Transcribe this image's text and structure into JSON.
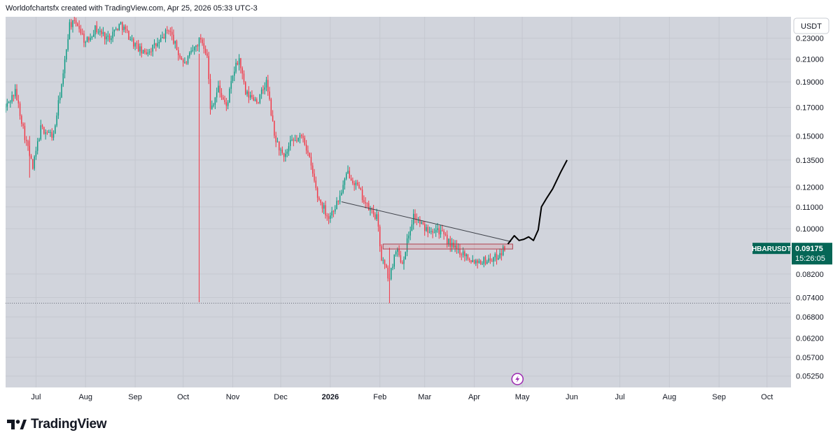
{
  "header": {
    "attribution": "Worldofchartsfx created with TradingView.com, Apr 25, 2026 05:33 UTC-3"
  },
  "footer": {
    "brand": "TradingView"
  },
  "colors": {
    "up": "#089981",
    "down": "#f23645",
    "plot_bg": "#d1d4dc",
    "grid": "#c5c8d0",
    "badge": "#056656"
  },
  "chart_data": {
    "type": "candlestick",
    "symbol": "HBARUSDT",
    "interval": "1D",
    "currency": "USDT",
    "scale": "log",
    "ylim": [
      0.0515,
      0.245
    ],
    "x_range_days": [
      0,
      491
    ],
    "y_ticks": [
      "0.23000",
      "0.21000",
      "0.19000",
      "0.17000",
      "0.15000",
      "0.13500",
      "0.12000",
      "0.11000",
      "0.10000",
      "0.08200",
      "0.07400",
      "0.06800",
      "0.06200",
      "0.05700",
      "0.05250"
    ],
    "x_ticks": [
      {
        "label": "Jul",
        "day": 19
      },
      {
        "label": "Aug",
        "day": 50
      },
      {
        "label": "Sep",
        "day": 81
      },
      {
        "label": "Oct",
        "day": 111
      },
      {
        "label": "Nov",
        "day": 142
      },
      {
        "label": "Dec",
        "day": 172
      },
      {
        "label": "2026",
        "day": 203,
        "bold": true
      },
      {
        "label": "Feb",
        "day": 234
      },
      {
        "label": "Mar",
        "day": 262
      },
      {
        "label": "Apr",
        "day": 293
      },
      {
        "label": "May",
        "day": 323
      },
      {
        "label": "Jun",
        "day": 354
      },
      {
        "label": "Jul",
        "day": 384
      },
      {
        "label": "Aug",
        "day": 415
      },
      {
        "label": "Sep",
        "day": 446
      },
      {
        "label": "Oct",
        "day": 476
      }
    ],
    "price_path": [
      [
        0,
        0.17
      ],
      [
        6,
        0.182
      ],
      [
        12,
        0.15
      ],
      [
        17,
        0.13
      ],
      [
        22,
        0.155
      ],
      [
        30,
        0.15
      ],
      [
        36,
        0.195
      ],
      [
        40,
        0.245
      ],
      [
        45,
        0.245
      ],
      [
        50,
        0.225
      ],
      [
        56,
        0.24
      ],
      [
        64,
        0.23
      ],
      [
        72,
        0.245
      ],
      [
        80,
        0.225
      ],
      [
        86,
        0.215
      ],
      [
        96,
        0.225
      ],
      [
        102,
        0.24
      ],
      [
        108,
        0.215
      ],
      [
        112,
        0.205
      ],
      [
        122,
        0.23
      ],
      [
        126,
        0.215
      ],
      [
        128,
        0.168
      ],
      [
        133,
        0.185
      ],
      [
        138,
        0.17
      ],
      [
        143,
        0.2
      ],
      [
        146,
        0.21
      ],
      [
        150,
        0.18
      ],
      [
        158,
        0.175
      ],
      [
        163,
        0.19
      ],
      [
        168,
        0.15
      ],
      [
        174,
        0.135
      ],
      [
        178,
        0.145
      ],
      [
        186,
        0.15
      ],
      [
        190,
        0.135
      ],
      [
        195,
        0.115
      ],
      [
        202,
        0.105
      ],
      [
        208,
        0.113
      ],
      [
        214,
        0.128
      ],
      [
        220,
        0.12
      ],
      [
        226,
        0.11
      ],
      [
        232,
        0.105
      ],
      [
        235,
        0.088
      ],
      [
        240,
        0.08
      ],
      [
        244,
        0.092
      ],
      [
        248,
        0.086
      ],
      [
        255,
        0.106
      ],
      [
        262,
        0.1
      ],
      [
        270,
        0.1
      ],
      [
        276,
        0.095
      ],
      [
        280,
        0.092
      ],
      [
        286,
        0.09
      ],
      [
        292,
        0.087
      ],
      [
        300,
        0.087
      ],
      [
        306,
        0.088
      ],
      [
        312,
        0.0918
      ]
    ],
    "wick_extremes": [
      {
        "day": 121,
        "low": 0.0725,
        "high": 0.215
      },
      {
        "day": 240,
        "low": 0.0722,
        "high": 0.092
      },
      {
        "day": 15,
        "low": 0.125,
        "high": 0.15
      }
    ],
    "last_price": {
      "label": "HBARUSDT",
      "value": "0.09175",
      "countdown": "15:26:05",
      "price": 0.09175
    },
    "low_line": {
      "price": 0.0722
    },
    "trendline": {
      "from": [
        210,
        0.1125
      ],
      "to": [
        316,
        0.0945
      ]
    },
    "support_box": {
      "from_day": 236,
      "to_day": 317,
      "top": 0.0935,
      "bottom": 0.0915
    },
    "projection": [
      [
        314,
        0.0935
      ],
      [
        318,
        0.097
      ],
      [
        321,
        0.095
      ],
      [
        324,
        0.0955
      ],
      [
        327,
        0.0965
      ],
      [
        330,
        0.095
      ],
      [
        333,
        0.0995
      ],
      [
        335,
        0.11
      ],
      [
        338,
        0.114
      ],
      [
        342,
        0.119
      ],
      [
        347,
        0.128
      ],
      [
        351,
        0.135
      ]
    ],
    "events": [
      {
        "icon": "lightning-icon",
        "day": 320
      }
    ]
  }
}
